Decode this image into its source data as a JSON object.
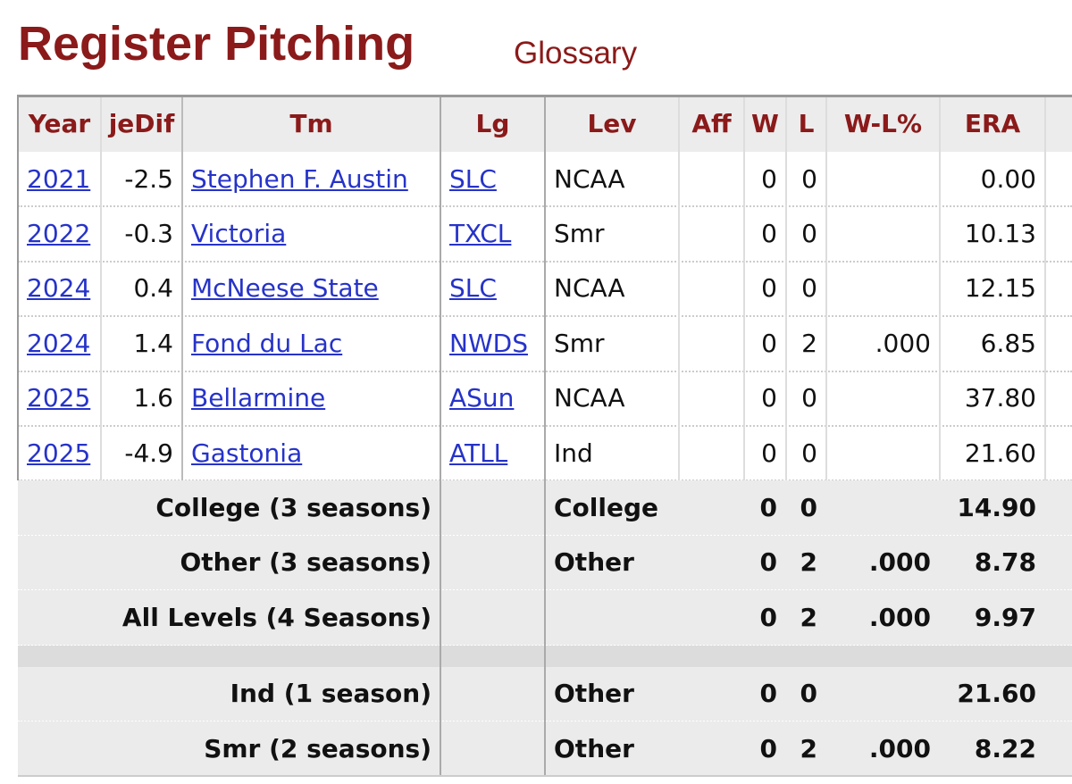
{
  "header": {
    "title": "Register Pitching",
    "glossary": "Glossary"
  },
  "table": {
    "columns": [
      "Year",
      "jeDif",
      "Tm",
      "Lg",
      "Lev",
      "Aff",
      "W",
      "L",
      "W-L%",
      "ERA"
    ],
    "rows": [
      [
        "2021",
        "-2.5",
        "Stephen F. Austin",
        "SLC",
        "NCAA",
        null,
        "0",
        "0",
        null,
        "0.00"
      ],
      [
        "2022",
        "-0.3",
        "Victoria",
        "TXCL",
        "Smr",
        null,
        "0",
        "0",
        null,
        "10.13"
      ],
      [
        "2024",
        "0.4",
        "McNeese State",
        "SLC",
        "NCAA",
        null,
        "0",
        "0",
        null,
        "12.15"
      ],
      [
        "2024",
        "1.4",
        "Fond du Lac",
        "NWDS",
        "Smr",
        null,
        "0",
        "2",
        ".000",
        "6.85"
      ],
      [
        "2025",
        "1.6",
        "Bellarmine",
        "ASun",
        "NCAA",
        null,
        "0",
        "0",
        null,
        "37.80"
      ],
      [
        "2025",
        "-4.9",
        "Gastonia",
        "ATLL",
        "Ind",
        null,
        "0",
        "0",
        null,
        "21.60"
      ]
    ],
    "totals": [
      [
        "College (3 seasons)",
        null,
        "College",
        null,
        "0",
        "0",
        null,
        "14.90"
      ],
      [
        "Other (3 seasons)",
        null,
        "Other",
        null,
        "0",
        "2",
        ".000",
        "8.78"
      ],
      [
        "All Levels (4 Seasons)",
        null,
        null,
        null,
        "0",
        "2",
        ".000",
        "9.97"
      ]
    ],
    "splits": [
      [
        "Ind (1 season)",
        null,
        "Other",
        null,
        "0",
        "0",
        null,
        "21.60"
      ],
      [
        "Smr (2 seasons)",
        null,
        "Other",
        null,
        "0",
        "2",
        ".000",
        "8.22"
      ]
    ]
  }
}
